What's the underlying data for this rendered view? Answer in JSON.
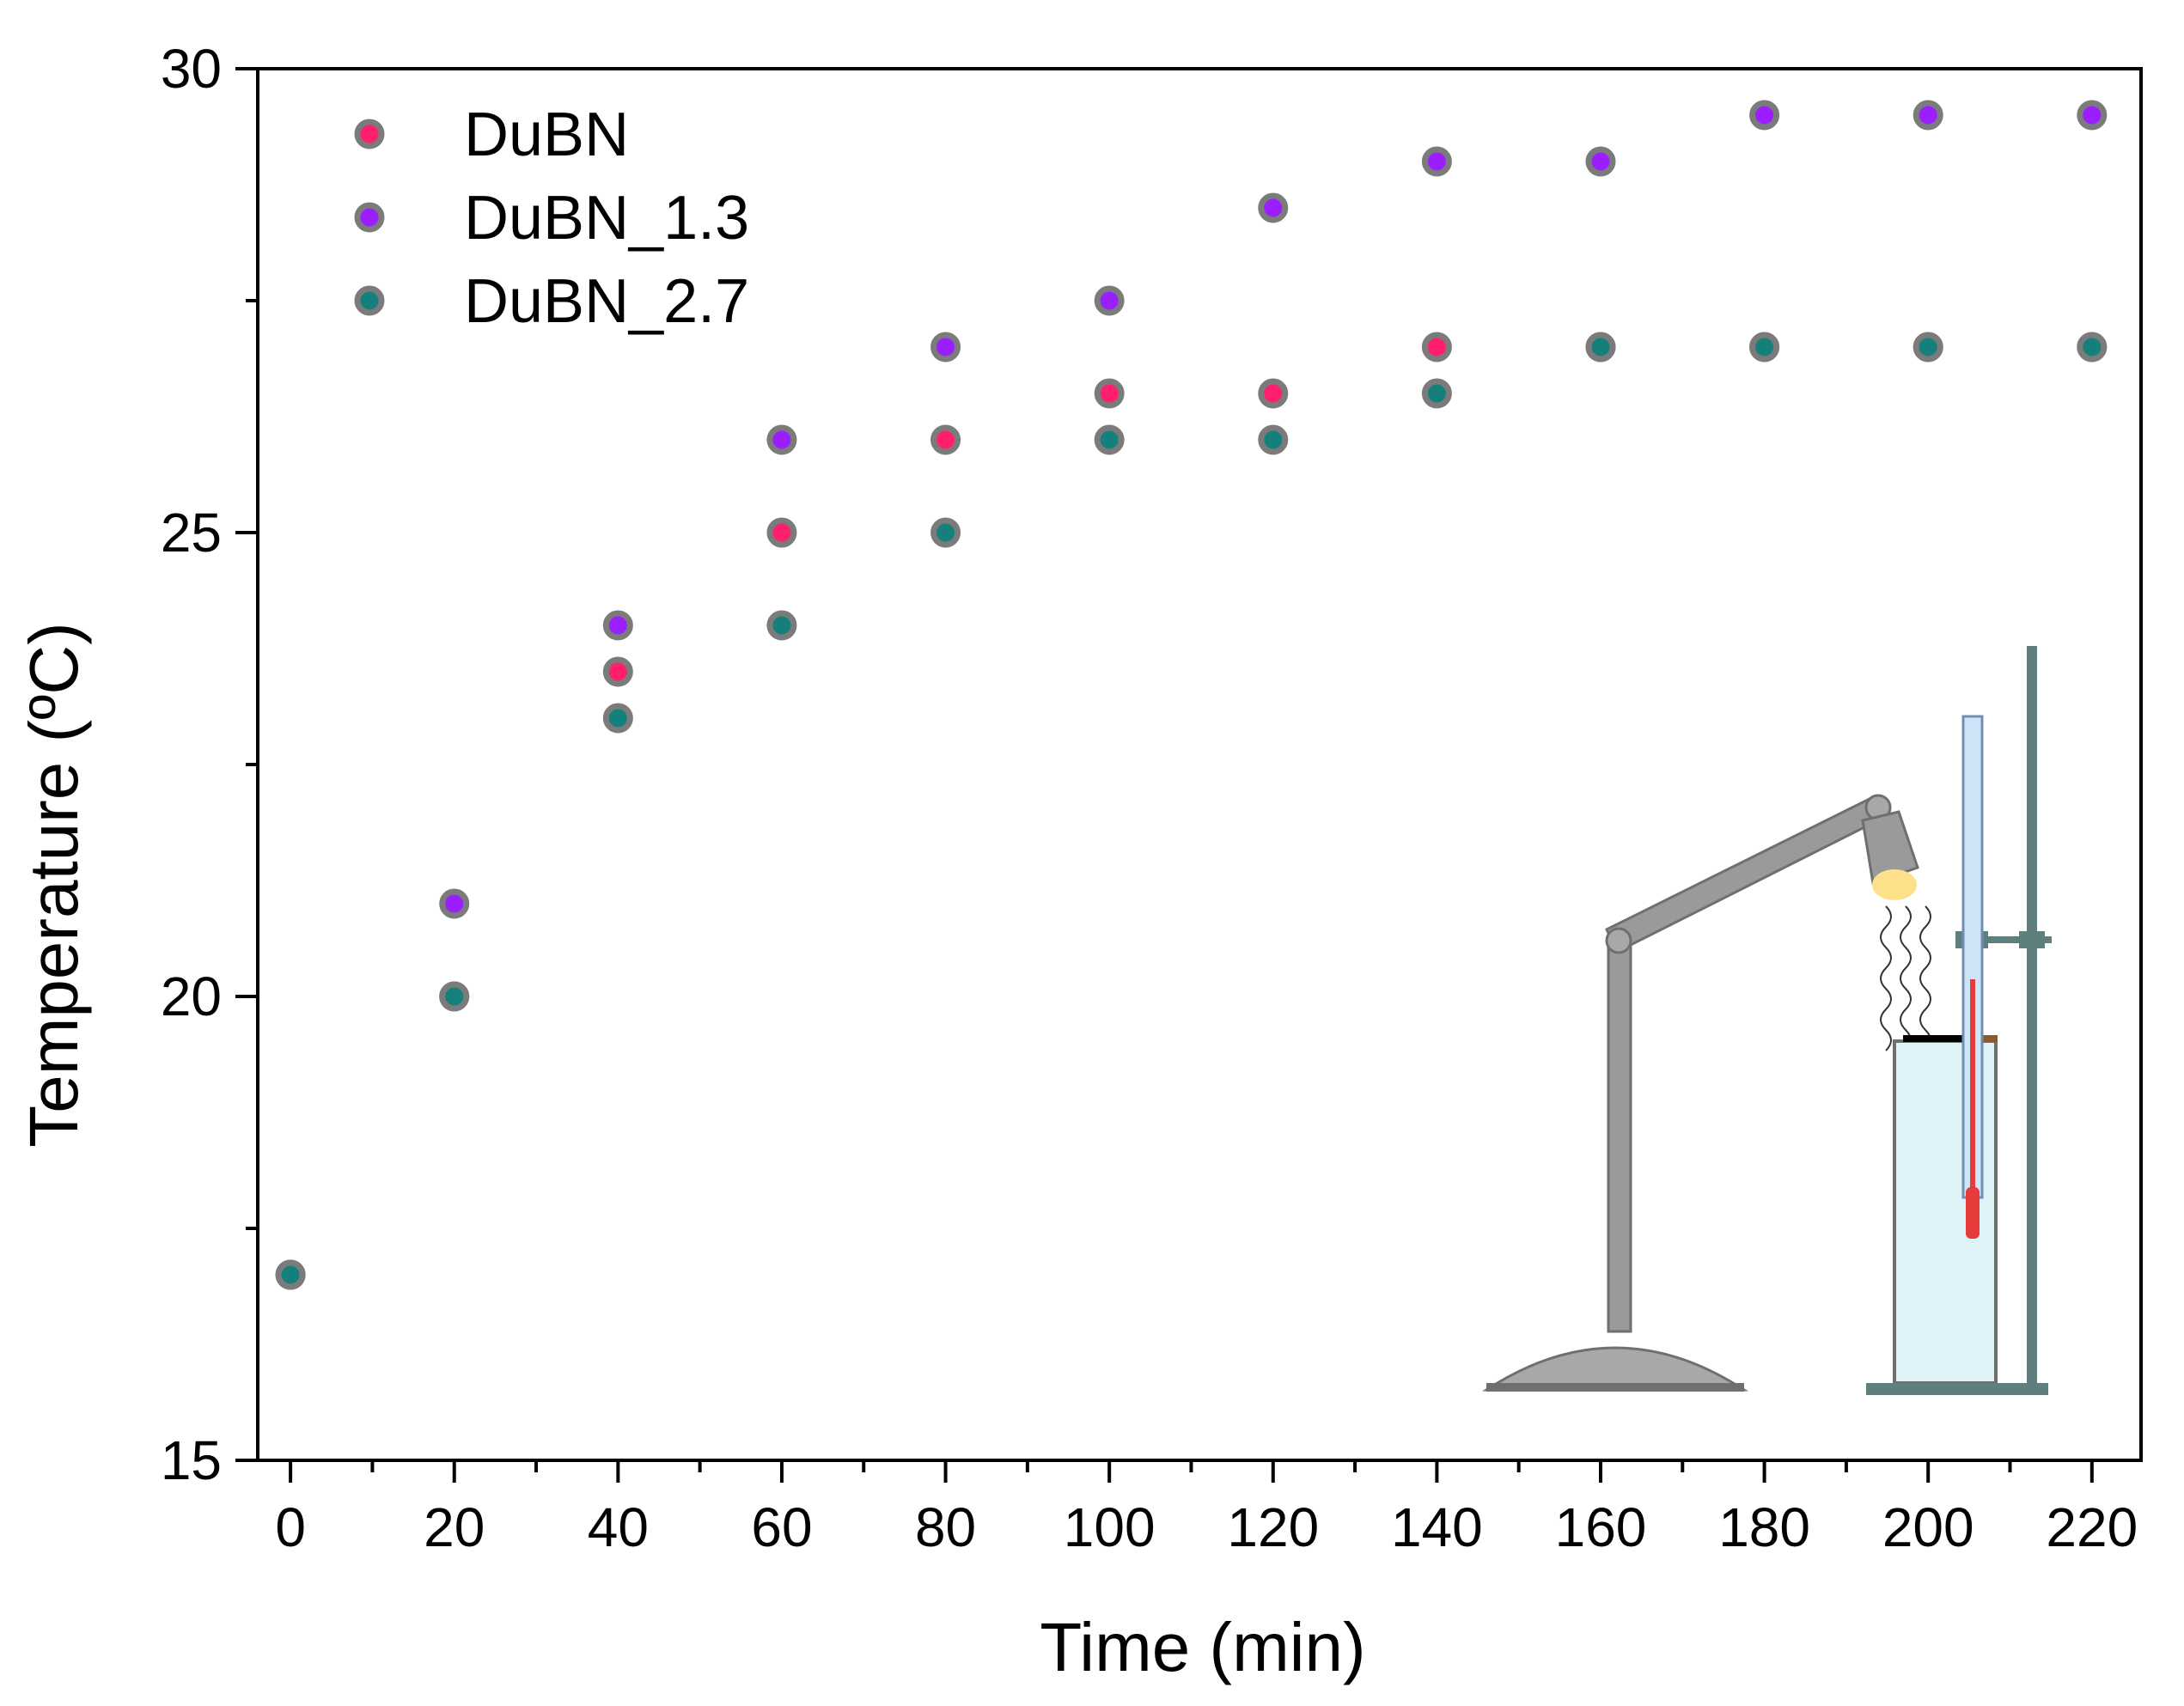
{
  "chart_data": {
    "type": "scatter",
    "xlabel": "Time (min)",
    "ylabel": "Temperature (ºC)",
    "xlim": [
      -4,
      226
    ],
    "ylim": [
      15,
      30
    ],
    "x_ticks": [
      0,
      20,
      40,
      60,
      80,
      100,
      120,
      140,
      160,
      180,
      200,
      220
    ],
    "y_ticks": [
      15,
      20,
      25,
      30
    ],
    "legend_position": "top-left",
    "series": [
      {
        "name": "DuBN",
        "color": "#ff1f6e",
        "points": [
          [
            0,
            17
          ],
          [
            20,
            20
          ],
          [
            40,
            23.5
          ],
          [
            60,
            25
          ],
          [
            80,
            26
          ],
          [
            100,
            26.5
          ],
          [
            120,
            26.5
          ],
          [
            140,
            27
          ],
          [
            160,
            27
          ],
          [
            180,
            27
          ],
          [
            200,
            27
          ],
          [
            220,
            27
          ]
        ]
      },
      {
        "name": "DuBN_1.3",
        "color": "#9b1eff",
        "points": [
          [
            0,
            17
          ],
          [
            20,
            21
          ],
          [
            40,
            24
          ],
          [
            60,
            26
          ],
          [
            80,
            27
          ],
          [
            100,
            27.5
          ],
          [
            120,
            28.5
          ],
          [
            140,
            29
          ],
          [
            160,
            29
          ],
          [
            180,
            29.5
          ],
          [
            200,
            29.5
          ],
          [
            220,
            29.5
          ]
        ]
      },
      {
        "name": "DuBN_2.7",
        "color": "#157f7c",
        "points": [
          [
            0,
            17
          ],
          [
            20,
            20
          ],
          [
            40,
            23
          ],
          [
            60,
            24
          ],
          [
            80,
            25
          ],
          [
            100,
            26
          ],
          [
            120,
            26
          ],
          [
            140,
            26.5
          ],
          [
            160,
            27
          ],
          [
            180,
            27
          ],
          [
            200,
            27
          ],
          [
            220,
            27
          ]
        ]
      }
    ]
  },
  "marker_edge_color": "#7b7b7b"
}
